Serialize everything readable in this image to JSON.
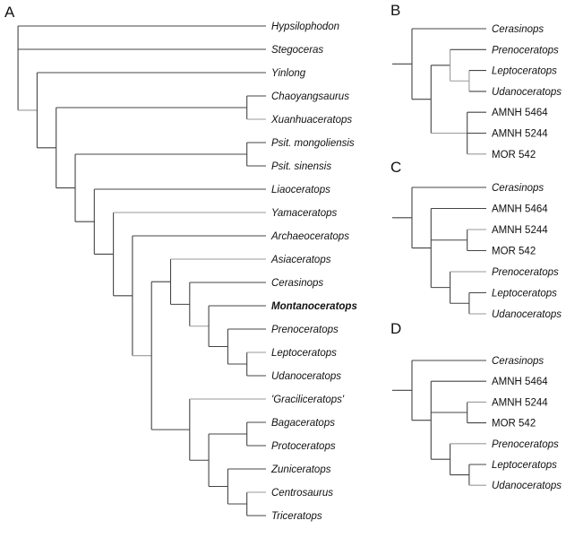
{
  "colors": {
    "branch": "#444444",
    "branch_light": "#9a9a9a",
    "text": "#111111"
  },
  "panels": [
    {
      "label": "A",
      "tree": {
        "children": [
          {
            "name": "Hypsilophodon",
            "style": "italic"
          },
          {
            "name": "Stegoceras",
            "style": "italic"
          },
          {
            "children": [
              {
                "name": "Yinlong",
                "style": "italic"
              },
              {
                "children": [
                  {
                    "children": [
                      {
                        "name": "Chaoyangsaurus",
                        "style": "italic"
                      },
                      {
                        "name": "Xuanhuaceratops",
                        "style": "italic"
                      }
                    ]
                  },
                  {
                    "children": [
                      {
                        "children": [
                          {
                            "name": "Psit. mongoliensis",
                            "style": "italic"
                          },
                          {
                            "name": "Psit. sinensis",
                            "style": "italic"
                          }
                        ]
                      },
                      {
                        "children": [
                          {
                            "name": "Liaoceratops",
                            "style": "italic"
                          },
                          {
                            "children": [
                              {
                                "name": "Yamaceratops",
                                "style": "italic"
                              },
                              {
                                "children": [
                                  {
                                    "name": "Archaeoceratops",
                                    "style": "italic"
                                  },
                                  {
                                    "children": [
                                      {
                                        "children": [
                                          {
                                            "name": "Asiaceratops",
                                            "style": "italic"
                                          },
                                          {
                                            "children": [
                                              {
                                                "name": "Cerasinops",
                                                "style": "italic"
                                              },
                                              {
                                                "children": [
                                                  {
                                                    "name": "Montanoceratops",
                                                    "style": "bold-italic"
                                                  },
                                                  {
                                                    "children": [
                                                      {
                                                        "name": "Prenoceratops",
                                                        "style": "italic"
                                                      },
                                                      {
                                                        "children": [
                                                          {
                                                            "name": "Leptoceratops",
                                                            "style": "italic"
                                                          },
                                                          {
                                                            "name": "Udanoceratops",
                                                            "style": "italic"
                                                          }
                                                        ]
                                                      }
                                                    ]
                                                  }
                                                ]
                                              }
                                            ]
                                          }
                                        ]
                                      },
                                      {
                                        "children": [
                                          {
                                            "name": "'Graciliceratops'",
                                            "style": "italic"
                                          },
                                          {
                                            "children": [
                                              {
                                                "children": [
                                                  {
                                                    "name": "Bagaceratops",
                                                    "style": "italic"
                                                  },
                                                  {
                                                    "name": "Protoceratops",
                                                    "style": "italic"
                                                  }
                                                ]
                                              },
                                              {
                                                "children": [
                                                  {
                                                    "name": "Zuniceratops",
                                                    "style": "italic"
                                                  },
                                                  {
                                                    "children": [
                                                      {
                                                        "name": "Centrosaurus",
                                                        "style": "italic"
                                                      },
                                                      {
                                                        "name": "Triceratops",
                                                        "style": "italic"
                                                      }
                                                    ]
                                                  }
                                                ]
                                              }
                                            ]
                                          }
                                        ]
                                      }
                                    ]
                                  }
                                ]
                              }
                            ]
                          }
                        ]
                      }
                    ]
                  }
                ]
              }
            ]
          }
        ]
      }
    },
    {
      "label": "B",
      "tree": {
        "children": [
          {
            "name": "Cerasinops",
            "style": "italic"
          },
          {
            "children": [
              {
                "children": [
                  {
                    "name": "Prenoceratops",
                    "style": "italic"
                  },
                  {
                    "children": [
                      {
                        "name": "Leptoceratops",
                        "style": "italic"
                      },
                      {
                        "name": "Udanoceratops",
                        "style": "italic"
                      }
                    ]
                  }
                ]
              },
              {
                "children": [
                  {
                    "name": "AMNH 5464",
                    "style": "normal"
                  },
                  {
                    "name": "AMNH 5244",
                    "style": "normal"
                  },
                  {
                    "name": "MOR 542",
                    "style": "normal"
                  }
                ]
              }
            ]
          }
        ]
      }
    },
    {
      "label": "C",
      "tree": {
        "children": [
          {
            "name": "Cerasinops",
            "style": "italic"
          },
          {
            "children": [
              {
                "name": "AMNH 5464",
                "style": "normal"
              },
              {
                "children": [
                  {
                    "name": "AMNH 5244",
                    "style": "normal"
                  },
                  {
                    "name": "MOR 542",
                    "style": "normal"
                  }
                ]
              },
              {
                "children": [
                  {
                    "name": "Prenoceratops",
                    "style": "italic"
                  },
                  {
                    "children": [
                      {
                        "name": "Leptoceratops",
                        "style": "italic"
                      },
                      {
                        "name": "Udanoceratops",
                        "style": "italic"
                      }
                    ]
                  }
                ]
              }
            ]
          }
        ]
      }
    },
    {
      "label": "D",
      "tree": {
        "children": [
          {
            "name": "Cerasinops",
            "style": "italic"
          },
          {
            "children": [
              {
                "name": "AMNH 5464",
                "style": "normal"
              },
              {
                "children": [
                  {
                    "name": "AMNH 5244",
                    "style": "normal"
                  },
                  {
                    "name": "MOR 542",
                    "style": "normal"
                  }
                ]
              },
              {
                "children": [
                  {
                    "name": "Prenoceratops",
                    "style": "italic"
                  },
                  {
                    "children": [
                      {
                        "name": "Leptoceratops",
                        "style": "italic"
                      },
                      {
                        "name": "Udanoceratops",
                        "style": "italic"
                      }
                    ]
                  }
                ]
              }
            ]
          }
        ]
      }
    }
  ]
}
